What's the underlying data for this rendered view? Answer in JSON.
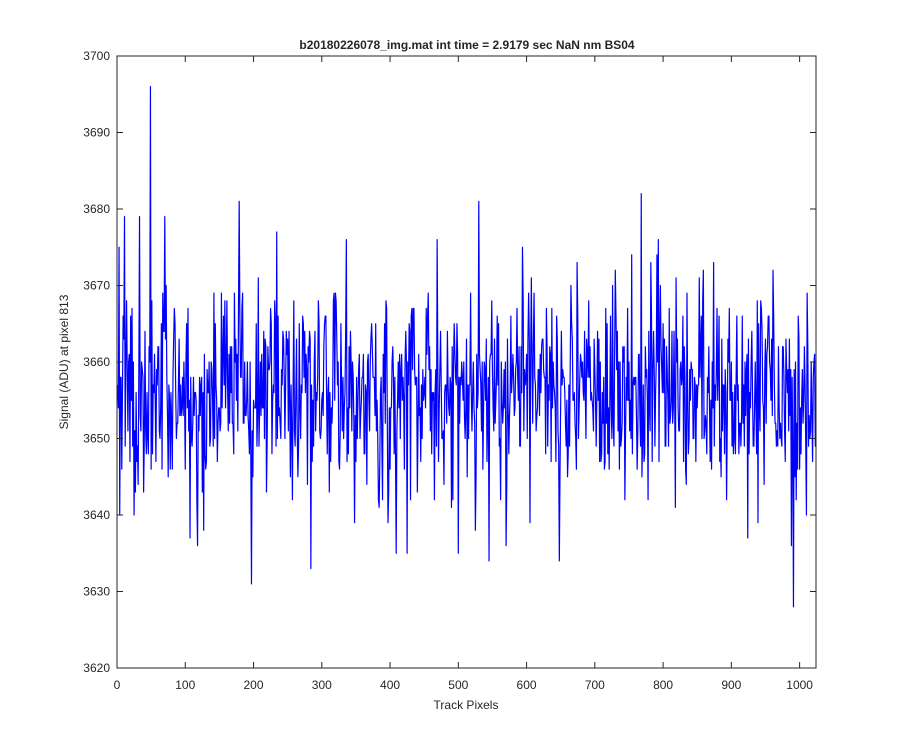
{
  "chart_data": {
    "type": "line",
    "title": "b20180226078_img.mat int time = 2.9179 sec  NaN nm BS04",
    "xlabel": "Track Pixels",
    "ylabel": "Signal (ADU) at pixel 813",
    "xlim": [
      0,
      1024
    ],
    "ylim": [
      3620,
      3700
    ],
    "xticks": [
      0,
      100,
      200,
      300,
      400,
      500,
      600,
      700,
      800,
      900,
      1000
    ],
    "yticks": [
      3620,
      3630,
      3640,
      3650,
      3660,
      3670,
      3680,
      3690,
      3700
    ],
    "grid": false,
    "box": true,
    "line_color": "#0000ff",
    "series": [
      {
        "x_start": 1,
        "x_step": 1,
        "count": 1024,
        "mean": 3656,
        "std": 7,
        "min": 3628,
        "max": 3696,
        "notable_points": [
          {
            "x": 49,
            "y": 3696
          },
          {
            "x": 3,
            "y": 3675
          },
          {
            "x": 11,
            "y": 3679
          },
          {
            "x": 33,
            "y": 3679
          },
          {
            "x": 70,
            "y": 3679
          },
          {
            "x": 179,
            "y": 3681
          },
          {
            "x": 530,
            "y": 3681
          },
          {
            "x": 768,
            "y": 3682
          },
          {
            "x": 197,
            "y": 3631
          },
          {
            "x": 284,
            "y": 3633
          },
          {
            "x": 118,
            "y": 3636
          },
          {
            "x": 409,
            "y": 3635
          },
          {
            "x": 425,
            "y": 3635
          },
          {
            "x": 500,
            "y": 3635
          },
          {
            "x": 545,
            "y": 3634
          },
          {
            "x": 648,
            "y": 3634
          },
          {
            "x": 924,
            "y": 3637
          },
          {
            "x": 988,
            "y": 3636
          },
          {
            "x": 991,
            "y": 3628
          },
          {
            "x": 1010,
            "y": 3640
          }
        ]
      }
    ]
  }
}
